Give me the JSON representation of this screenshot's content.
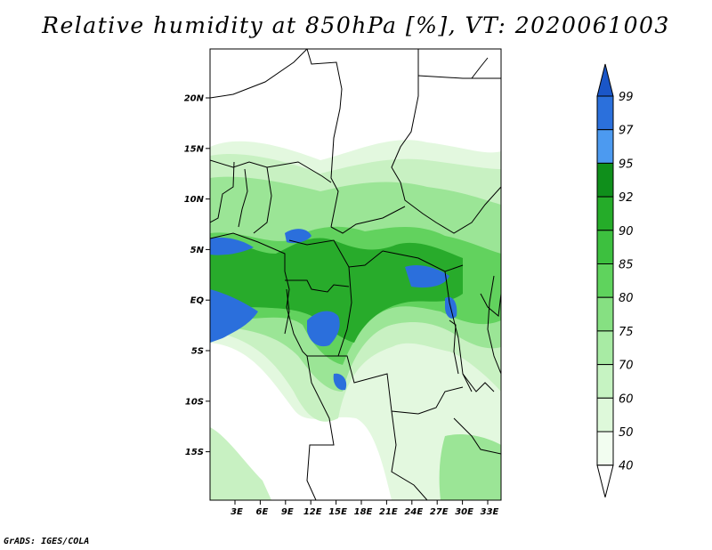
{
  "title": "Relative humidity at 850hPa [%], VT: 2020061003",
  "credit": "GrADS: IGES/COLA",
  "axes": {
    "lat_ticks": [
      "20N",
      "15N",
      "10N",
      "5N",
      "EQ",
      "5S",
      "10S",
      "15S"
    ],
    "lon_ticks": [
      "3E",
      "6E",
      "9E",
      "12E",
      "15E",
      "18E",
      "21E",
      "24E",
      "27E",
      "30E",
      "33E"
    ]
  },
  "colorbar": {
    "levels": [
      "99",
      "97",
      "95",
      "92",
      "90",
      "85",
      "80",
      "75",
      "70",
      "60",
      "50",
      "40"
    ],
    "colors": [
      "#1a56c8",
      "#2b70dc",
      "#4c9af0",
      "#0f8f1b",
      "#25ac29",
      "#3dc03f",
      "#5fd35d",
      "#86e082",
      "#a8eba4",
      "#c6f3c2",
      "#def9da",
      "#f2fdf0",
      "#ffffff"
    ]
  }
}
